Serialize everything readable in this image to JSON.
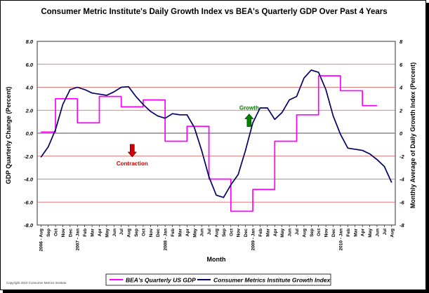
{
  "chart_data": {
    "type": "line",
    "title": "Consumer Metric Institute's Daily Growth Index vs BEA's Quarterly GDP Over Past 4 Years",
    "xlabel": "Month",
    "ylabel_left": "GDP Quarterly Change (Percent)",
    "ylabel_right": "Monthly Average of Daily Growth Index (Percent)",
    "ylim": [
      -8,
      8
    ],
    "y_ticks_left": [
      "8.0",
      "6.0",
      "4.0",
      "2.0",
      "0.0",
      "-2.0",
      "-4.0",
      "-6.0",
      "-8.0"
    ],
    "y_ticks_right": [
      "8",
      "6",
      "4",
      "2",
      "0",
      "-2",
      "-4",
      "-6",
      "-8"
    ],
    "x_tick_labels": [
      "2006 - Aug",
      "Sep",
      "Oct",
      "Nov",
      "Dec",
      "2007 - Jan",
      "Feb",
      "Mar",
      "Apr",
      "May",
      "Jun",
      "Jul",
      "Aug",
      "Sep",
      "Oct",
      "Nov",
      "Dec",
      "2008 - Jan",
      "Feb",
      "Mar",
      "Apr",
      "May",
      "Jun",
      "Jul",
      "Aug",
      "Sep",
      "Oct",
      "Nov",
      "Dec",
      "2009 - Jan",
      "Feb",
      "Mar",
      "Apr",
      "May",
      "Jun",
      "Jul",
      "Aug",
      "Sep",
      "Oct",
      "Nov",
      "Dec",
      "2010 - Jan",
      "Feb",
      "Mar",
      "Apr",
      "May",
      "Jun",
      "Jul",
      "Aug"
    ],
    "grid": "horizontal",
    "legend_position": "bottom",
    "series": [
      {
        "name": "BEA's Quarterly US GDP",
        "color": "#ff00ff",
        "axis": "left",
        "step": true,
        "values": [
          0.1,
          0.1,
          3.0,
          3.0,
          3.0,
          0.9,
          0.9,
          0.9,
          3.2,
          3.2,
          3.2,
          2.3,
          2.3,
          2.3,
          2.9,
          2.9,
          2.9,
          -0.7,
          -0.7,
          -0.7,
          0.6,
          0.6,
          0.6,
          -4.0,
          -4.0,
          -4.0,
          -6.8,
          -6.8,
          -6.8,
          -4.9,
          -4.9,
          -4.9,
          -0.7,
          -0.7,
          -0.7,
          1.6,
          1.6,
          1.6,
          5.0,
          5.0,
          5.0,
          3.7,
          3.7,
          3.7,
          2.4,
          2.4,
          2.4
        ]
      },
      {
        "name": "Consumer Metrics Institute Growth Index",
        "color": "#000066",
        "axis": "right",
        "step": false,
        "values": [
          -2.1,
          -1.2,
          0.3,
          2.5,
          3.8,
          4.0,
          3.8,
          3.5,
          3.4,
          3.3,
          3.6,
          4.0,
          4.05,
          3.2,
          2.5,
          1.9,
          1.5,
          1.3,
          1.7,
          1.6,
          1.6,
          0.5,
          -1.5,
          -3.8,
          -5.4,
          -5.6,
          -4.5,
          -3.6,
          -1.5,
          0.9,
          2.2,
          2.2,
          1.2,
          1.8,
          2.9,
          3.2,
          4.8,
          5.5,
          5.3,
          3.8,
          1.5,
          -0.1,
          -1.3,
          -1.4,
          -1.5,
          -1.8,
          -2.3,
          -2.9,
          -4.3
        ]
      }
    ],
    "annotations": [
      {
        "text": "Growth",
        "color": "#008000",
        "arrow": "up",
        "x_index": 28.5,
        "y": 1.0
      },
      {
        "text": "Contraction",
        "color": "#cc0000",
        "arrow": "down",
        "x_index": 12.5,
        "y": -1.4
      }
    ]
  },
  "footer": {
    "copyright": "Copyright 2010 Consumer Metrics Institute"
  }
}
